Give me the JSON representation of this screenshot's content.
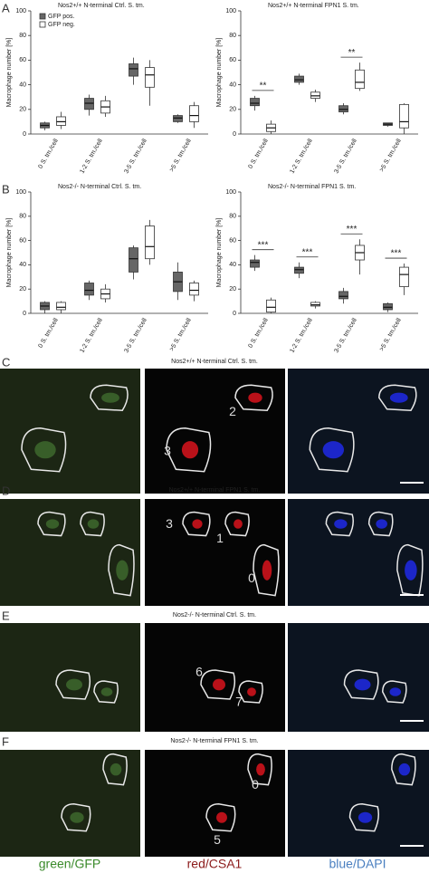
{
  "chart_data": [
    {
      "type": "box",
      "panel_label": "A",
      "title": "Nos2+/+ N-terminal Ctrl. S. tm.",
      "y_label": "Macrophage number [%]",
      "categories": [
        "0 S. tm./cell",
        "1-2 S. tm./cell",
        "3-5 S. tm./cell",
        ">5 S. tm./cell"
      ],
      "series": [
        {
          "name": "GFP pos.",
          "color": "#666666",
          "values": [
            [
              3,
              5,
              7,
              9,
              10
            ],
            [
              15,
              20,
              25,
              29,
              32
            ],
            [
              40,
              47,
              53,
              57,
              62
            ],
            [
              9,
              10,
              13,
              15,
              16
            ]
          ]
        },
        {
          "name": "GFP neg.",
          "color": "#ffffff",
          "values": [
            [
              4,
              7,
              10,
              14,
              18
            ],
            [
              14,
              17,
              22,
              27,
              31
            ],
            [
              23,
              38,
              48,
              54,
              60
            ],
            [
              5,
              10,
              15,
              23,
              26
            ]
          ]
        }
      ],
      "legend": "top-left",
      "ylim": [
        0,
        100
      ],
      "yticks": [
        0,
        20,
        40,
        60,
        80,
        100
      ],
      "annotations": []
    },
    {
      "type": "box",
      "title": "Nos2+/+ N-terminal FPN1 S. tm.",
      "y_label": "Macrophage number [%]",
      "categories": [
        "0 S. tm./cell",
        "1-2 S. tm./cell",
        "3-5 S. tm./cell",
        ">5 S. tm./cell"
      ],
      "series": [
        {
          "color": "#666666",
          "values": [
            [
              19,
              23,
              25,
              29,
              31
            ],
            [
              40,
              42,
              44,
              47,
              49
            ],
            [
              16,
              18,
              20,
              23,
              25
            ],
            [
              6,
              7,
              8,
              9,
              9
            ]
          ]
        },
        {
          "color": "#ffffff",
          "values": [
            [
              0,
              2,
              5,
              8,
              11
            ],
            [
              26,
              29,
              31,
              34,
              36
            ],
            [
              35,
              37,
              42,
              52,
              58
            ],
            [
              0,
              5,
              10,
              24,
              25
            ]
          ]
        }
      ],
      "ylim": [
        0,
        100
      ],
      "yticks": [
        0,
        20,
        40,
        60,
        80,
        100
      ],
      "annotations": [
        "**",
        "**"
      ]
    },
    {
      "type": "box",
      "panel_label": "B",
      "title": "Nos2-/- N-terminal Ctrl. S. tm.",
      "y_label": "Macrophage number [%]",
      "categories": [
        "0 S. tm./cell",
        "1-2 S. tm./cell",
        "3-5 S. tm./cell",
        ">5 S. tm./cell"
      ],
      "series": [
        {
          "color": "#666666",
          "values": [
            [
              0,
              3,
              6,
              9,
              10
            ],
            [
              11,
              15,
              19,
              25,
              27
            ],
            [
              28,
              34,
              45,
              54,
              56
            ],
            [
              11,
              18,
              26,
              34,
              42
            ]
          ]
        },
        {
          "color": "#ffffff",
          "values": [
            [
              0,
              3,
              5,
              9,
              10
            ],
            [
              9,
              12,
              16,
              20,
              24
            ],
            [
              40,
              45,
              55,
              72,
              77
            ],
            [
              10,
              15,
              19,
              25,
              27
            ]
          ]
        }
      ],
      "ylim": [
        0,
        100
      ],
      "yticks": [
        0,
        20,
        40,
        60,
        80,
        100
      ],
      "annotations": []
    },
    {
      "type": "box",
      "title": "Nos2-/- N-terminal FPN1 S. tm.",
      "y_label": "Macrophage number [%]",
      "categories": [
        "0 S. tm./cell",
        "1-2 S. tm./cell",
        "3-5 S. tm./cell",
        ">5 S. tm./cell"
      ],
      "series": [
        {
          "color": "#666666",
          "values": [
            [
              35,
              38,
              42,
              44,
              48
            ],
            [
              29,
              33,
              36,
              38,
              42
            ],
            [
              8,
              12,
              14,
              18,
              21
            ],
            [
              1,
              3,
              5,
              8,
              9
            ]
          ]
        },
        {
          "color": "#ffffff",
          "values": [
            [
              0,
              1,
              5,
              11,
              13
            ],
            [
              4,
              6,
              7,
              9,
              10
            ],
            [
              32,
              44,
              50,
              56,
              61
            ],
            [
              15,
              22,
              32,
              38,
              41
            ]
          ]
        }
      ],
      "ylim": [
        0,
        100
      ],
      "yticks": [
        0,
        20,
        40,
        60,
        80,
        100
      ],
      "annotations": [
        "***",
        "***",
        "***",
        "***"
      ]
    }
  ],
  "micrographs": [
    {
      "label": "C",
      "title": "Nos2+/+ N-terminal Ctrl. S. tm.",
      "numbers": [
        "2",
        "3"
      ]
    },
    {
      "label": "D",
      "title": "Nos2+/+ N-terminal FPN1 S. tm.",
      "numbers": [
        "3",
        "1",
        "0"
      ]
    },
    {
      "label": "E",
      "title": "Nos2-/- N-terminal Ctrl. S. tm.",
      "numbers": [
        "6",
        "7"
      ]
    },
    {
      "label": "F",
      "title": "Nos2-/- N-terminal FPN1 S. tm.",
      "numbers": [
        "0",
        "5"
      ]
    }
  ],
  "channels": [
    {
      "label": "green/GFP",
      "color": "#3a8a2a"
    },
    {
      "label": "red/CSA1",
      "color": "#8b1a1a"
    },
    {
      "label": "blue/DAPI",
      "color": "#4a7fc0"
    }
  ]
}
